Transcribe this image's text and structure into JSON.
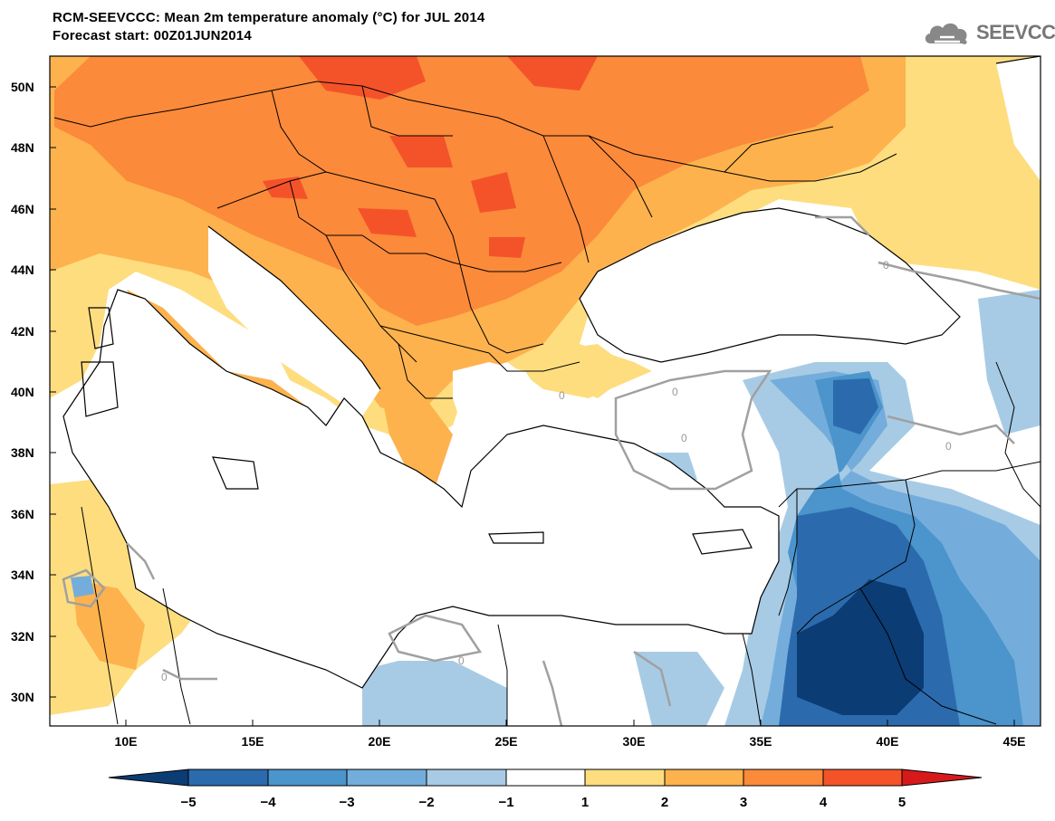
{
  "header": {
    "title": "RCM-SEEVCCC: Mean 2m temperature anomaly (°C) for JUL 2014",
    "subtitle": "Forecast start: 00Z01JUN2014",
    "logo_text": "SEEVCCC"
  },
  "map": {
    "lat_labels": [
      "50N",
      "48N",
      "46N",
      "44N",
      "42N",
      "40N",
      "38N",
      "36N",
      "34N",
      "32N",
      "30N"
    ],
    "lon_labels": [
      "10E",
      "15E",
      "20E",
      "25E",
      "30E",
      "35E",
      "40E",
      "45E"
    ],
    "contour_label": "0"
  },
  "colorbar": {
    "labels": [
      "−5",
      "−4",
      "−3",
      "−2",
      "−1",
      "1",
      "2",
      "3",
      "4",
      "5"
    ],
    "colors": [
      "#0b3c73",
      "#2b6bad",
      "#4b94cc",
      "#74addb",
      "#a7cbe5",
      "#ffffff",
      "#fedd7f",
      "#fdb24d",
      "#fb8a3a",
      "#f4532a",
      "#d7191c"
    ]
  }
}
